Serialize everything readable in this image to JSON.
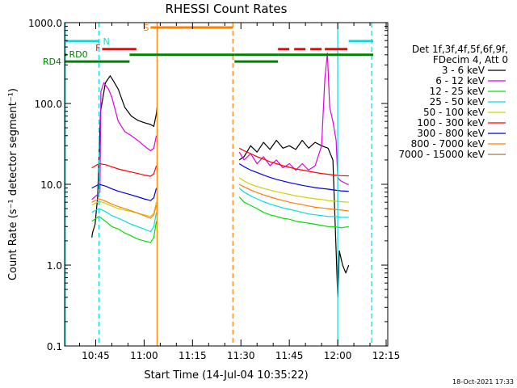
{
  "chart_data": {
    "type": "line",
    "title": "RHESSI Count Rates",
    "xlabel": "Start Time (14-Jul-04 10:35:22)",
    "ylabel": "Count Rate (s⁻¹ detector segment⁻¹)",
    "y_scale": "log",
    "ylim": [
      0.1,
      1000
    ],
    "xlim_min": [
      35.37,
      135.5
    ],
    "x_ticks": [
      {
        "m": 45,
        "label": "10:45"
      },
      {
        "m": 60,
        "label": "11:00"
      },
      {
        "m": 75,
        "label": "11:15"
      },
      {
        "m": 90,
        "label": "11:30"
      },
      {
        "m": 105,
        "label": "11:45"
      },
      {
        "m": 120,
        "label": "12:00"
      },
      {
        "m": 135,
        "label": "12:15"
      }
    ],
    "y_ticks": [
      {
        "v": 1000,
        "label": "1000.0"
      },
      {
        "v": 100,
        "label": "100.0"
      },
      {
        "v": 10,
        "label": "10.0"
      },
      {
        "v": 1,
        "label": "1.0"
      },
      {
        "v": 0.1,
        "label": "0.1"
      }
    ],
    "legend_header": [
      "Det 1f,3f,4f,5f,6f,9f,",
      "FDecim 4, Att 0"
    ],
    "data_gaps_min": [
      [
        64.0,
        89.5
      ]
    ],
    "series": [
      {
        "name": "3 - 6 keV",
        "color": "#000000",
        "pts": [
          [
            43.8,
            2.2
          ],
          [
            44,
            2.5
          ],
          [
            44.8,
            3.2
          ],
          [
            45.6,
            7
          ],
          [
            46.5,
            80
          ],
          [
            48,
            180
          ],
          [
            49.5,
            220
          ],
          [
            50.5,
            190
          ],
          [
            52,
            150
          ],
          [
            54,
            90
          ],
          [
            56,
            70
          ],
          [
            58,
            62
          ],
          [
            60,
            58
          ],
          [
            62,
            55
          ],
          [
            63,
            52
          ],
          [
            63.8,
            75
          ],
          [
            64,
            90
          ],
          [
            89.5,
            20
          ],
          [
            91,
            22
          ],
          [
            93,
            30
          ],
          [
            95,
            25
          ],
          [
            97,
            33
          ],
          [
            99,
            27
          ],
          [
            101,
            35
          ],
          [
            103,
            28
          ],
          [
            105,
            30
          ],
          [
            107,
            27
          ],
          [
            109,
            35
          ],
          [
            111,
            28
          ],
          [
            113,
            33
          ],
          [
            115,
            30
          ],
          [
            117,
            28
          ],
          [
            118.5,
            20
          ],
          [
            119.5,
            1.5
          ],
          [
            120,
            0.4
          ],
          [
            120.5,
            1.5
          ],
          [
            121.5,
            1.0
          ],
          [
            122.5,
            0.8
          ],
          [
            123.4,
            1.0
          ]
        ]
      },
      {
        "name": "6 - 12 keV",
        "color": "#e000e0",
        "pts": [
          [
            43.8,
            6.5
          ],
          [
            45.6,
            7.5
          ],
          [
            46.3,
            8
          ],
          [
            46.6,
            140
          ],
          [
            47.5,
            180
          ],
          [
            49,
            150
          ],
          [
            50,
            120
          ],
          [
            52,
            60
          ],
          [
            54,
            45
          ],
          [
            56,
            40
          ],
          [
            58,
            35
          ],
          [
            60,
            30
          ],
          [
            62,
            26
          ],
          [
            63,
            28
          ],
          [
            63.8,
            40
          ],
          [
            89.5,
            25
          ],
          [
            91,
            20
          ],
          [
            93,
            24
          ],
          [
            95,
            18
          ],
          [
            97,
            22
          ],
          [
            99,
            17
          ],
          [
            101,
            20
          ],
          [
            103,
            16
          ],
          [
            105,
            18
          ],
          [
            107,
            15
          ],
          [
            109,
            18
          ],
          [
            111,
            15
          ],
          [
            113,
            17
          ],
          [
            115,
            30
          ],
          [
            116,
            200
          ],
          [
            116.8,
            420
          ],
          [
            117.5,
            90
          ],
          [
            118.5,
            60
          ],
          [
            119.5,
            35
          ],
          [
            120,
            12
          ],
          [
            121,
            11
          ],
          [
            123,
            10
          ],
          [
            123.4,
            10
          ]
        ]
      },
      {
        "name": "12 - 25 keV",
        "color": "#00e000",
        "pts": [
          [
            43.8,
            3.5
          ],
          [
            46,
            4
          ],
          [
            48,
            3.5
          ],
          [
            50,
            3.0
          ],
          [
            52,
            2.8
          ],
          [
            54,
            2.5
          ],
          [
            56,
            2.3
          ],
          [
            58,
            2.1
          ],
          [
            60,
            2.0
          ],
          [
            62,
            1.9
          ],
          [
            63,
            2.2
          ],
          [
            63.8,
            3.5
          ],
          [
            89.5,
            7
          ],
          [
            91,
            6
          ],
          [
            93,
            5.5
          ],
          [
            95,
            5
          ],
          [
            97,
            4.5
          ],
          [
            99,
            4.2
          ],
          [
            101,
            4
          ],
          [
            103,
            3.8
          ],
          [
            105,
            3.7
          ],
          [
            107,
            3.5
          ],
          [
            109,
            3.4
          ],
          [
            111,
            3.3
          ],
          [
            113,
            3.2
          ],
          [
            115,
            3.1
          ],
          [
            117,
            3.0
          ],
          [
            119,
            3.0
          ],
          [
            121,
            2.9
          ],
          [
            123.4,
            3.0
          ]
        ]
      },
      {
        "name": "25 - 50 keV",
        "color": "#00e0e0",
        "pts": [
          [
            43.8,
            4.5
          ],
          [
            46,
            5.0
          ],
          [
            48,
            4.6
          ],
          [
            50,
            4.1
          ],
          [
            52,
            3.8
          ],
          [
            54,
            3.5
          ],
          [
            56,
            3.2
          ],
          [
            58,
            3.0
          ],
          [
            60,
            2.8
          ],
          [
            62,
            2.6
          ],
          [
            63,
            3.0
          ],
          [
            63.8,
            4.5
          ],
          [
            89.5,
            9
          ],
          [
            91,
            8
          ],
          [
            93,
            7.2
          ],
          [
            95,
            6.6
          ],
          [
            97,
            6.1
          ],
          [
            99,
            5.7
          ],
          [
            101,
            5.4
          ],
          [
            103,
            5.1
          ],
          [
            105,
            4.9
          ],
          [
            107,
            4.7
          ],
          [
            109,
            4.5
          ],
          [
            111,
            4.3
          ],
          [
            113,
            4.2
          ],
          [
            115,
            4.1
          ],
          [
            117,
            4.0
          ],
          [
            119,
            4.0
          ],
          [
            121,
            3.9
          ],
          [
            123.4,
            3.9
          ]
        ]
      },
      {
        "name": "50 - 100 keV",
        "color": "#d0d000",
        "pts": [
          [
            43.8,
            5.5
          ],
          [
            46,
            6.2
          ],
          [
            48,
            5.8
          ],
          [
            50,
            5.4
          ],
          [
            52,
            5.0
          ],
          [
            54,
            4.8
          ],
          [
            56,
            4.6
          ],
          [
            58,
            4.4
          ],
          [
            60,
            4.2
          ],
          [
            62,
            4.0
          ],
          [
            63,
            4.4
          ],
          [
            63.8,
            6.0
          ],
          [
            89.5,
            12
          ],
          [
            91,
            11
          ],
          [
            93,
            10
          ],
          [
            95,
            9.4
          ],
          [
            97,
            8.9
          ],
          [
            99,
            8.5
          ],
          [
            101,
            8.1
          ],
          [
            103,
            7.8
          ],
          [
            105,
            7.5
          ],
          [
            107,
            7.2
          ],
          [
            109,
            7.0
          ],
          [
            111,
            6.8
          ],
          [
            113,
            6.6
          ],
          [
            115,
            6.5
          ],
          [
            117,
            6.3
          ],
          [
            119,
            6.2
          ],
          [
            121,
            6.1
          ],
          [
            123.4,
            6.0
          ]
        ]
      },
      {
        "name": "100 - 300 keV",
        "color": "#ff0000",
        "pts": [
          [
            43.8,
            16
          ],
          [
            46,
            18
          ],
          [
            48,
            17.5
          ],
          [
            50,
            16.5
          ],
          [
            52,
            15.5
          ],
          [
            54,
            14.8
          ],
          [
            56,
            14.2
          ],
          [
            58,
            13.6
          ],
          [
            60,
            13.0
          ],
          [
            62,
            12.6
          ],
          [
            63,
            13.5
          ],
          [
            63.8,
            17
          ],
          [
            89.5,
            28
          ],
          [
            91,
            26
          ],
          [
            93,
            24
          ],
          [
            95,
            22
          ],
          [
            97,
            20.5
          ],
          [
            99,
            19
          ],
          [
            101,
            18
          ],
          [
            103,
            17
          ],
          [
            105,
            16.2
          ],
          [
            107,
            15.5
          ],
          [
            109,
            15
          ],
          [
            111,
            14.5
          ],
          [
            113,
            14
          ],
          [
            115,
            13.6
          ],
          [
            117,
            13.3
          ],
          [
            119,
            13
          ],
          [
            121,
            12.8
          ],
          [
            123.4,
            12.7
          ]
        ]
      },
      {
        "name": "300 - 800 keV",
        "color": "#0000e0",
        "pts": [
          [
            43.8,
            9
          ],
          [
            46,
            10
          ],
          [
            48,
            9.5
          ],
          [
            50,
            8.8
          ],
          [
            52,
            8.2
          ],
          [
            54,
            7.8
          ],
          [
            56,
            7.4
          ],
          [
            58,
            7.0
          ],
          [
            60,
            6.6
          ],
          [
            62,
            6.3
          ],
          [
            63,
            6.8
          ],
          [
            63.8,
            9
          ],
          [
            89.5,
            18
          ],
          [
            91,
            16.5
          ],
          [
            93,
            15
          ],
          [
            95,
            14
          ],
          [
            97,
            13
          ],
          [
            99,
            12.2
          ],
          [
            101,
            11.5
          ],
          [
            103,
            11
          ],
          [
            105,
            10.5
          ],
          [
            107,
            10.1
          ],
          [
            109,
            9.7
          ],
          [
            111,
            9.4
          ],
          [
            113,
            9.1
          ],
          [
            115,
            8.9
          ],
          [
            117,
            8.7
          ],
          [
            119,
            8.5
          ],
          [
            121,
            8.3
          ],
          [
            123.4,
            8.2
          ]
        ]
      },
      {
        "name": "800 - 7000 keV",
        "color": "#ff8000",
        "pts": [
          [
            43.8,
            6
          ],
          [
            46,
            6.6
          ],
          [
            48,
            6.2
          ],
          [
            50,
            5.7
          ],
          [
            52,
            5.3
          ],
          [
            54,
            5.0
          ],
          [
            56,
            4.7
          ],
          [
            58,
            4.4
          ],
          [
            60,
            4.1
          ],
          [
            62,
            3.8
          ],
          [
            63,
            4.2
          ],
          [
            63.8,
            5.5
          ],
          [
            89.5,
            10
          ],
          [
            91,
            9.3
          ],
          [
            93,
            8.5
          ],
          [
            95,
            7.9
          ],
          [
            97,
            7.4
          ],
          [
            99,
            7.0
          ],
          [
            101,
            6.6
          ],
          [
            103,
            6.3
          ],
          [
            105,
            6.0
          ],
          [
            107,
            5.8
          ],
          [
            109,
            5.6
          ],
          [
            111,
            5.4
          ],
          [
            113,
            5.2
          ],
          [
            115,
            5.1
          ],
          [
            117,
            5.0
          ],
          [
            119,
            4.9
          ],
          [
            121,
            4.8
          ],
          [
            123.4,
            4.7
          ]
        ]
      },
      {
        "name": "7000 - 15000 keV",
        "color": "#a07850",
        "pts": []
      }
    ],
    "markers": [
      {
        "label": "N",
        "color": "#00e0e0",
        "segments": [
          [
            35.4,
            46.0
          ]
        ],
        "y_value": 590
      },
      {
        "label": "F",
        "color": "#ff0000",
        "segments": [
          [
            47.0,
            57.6
          ]
        ],
        "y_value": 470
      },
      {
        "label": "S",
        "color": "#ff8000",
        "segments": [
          [
            62.0,
            87.5
          ]
        ],
        "y_value": 870
      },
      {
        "label": "RD0",
        "color": "#008000",
        "segments": [
          [
            35.4,
            36.0
          ]
        ],
        "y_value": 400
      },
      {
        "label": "RD4",
        "color": "#008000",
        "segments": [
          [
            35.4,
            55.5
          ]
        ],
        "y_value": 330
      },
      {
        "label": "",
        "color": "#008000",
        "segments": [
          [
            55.5,
            88.0
          ],
          [
            88.0,
            101.5
          ],
          [
            101.5,
            131.0
          ]
        ],
        "y_value": 400
      },
      {
        "label": "",
        "color": "#008000",
        "segments": [
          [
            88.0,
            101.5
          ]
        ],
        "y_value": 330
      },
      {
        "label": "",
        "color": "#ff0000",
        "segments": [
          [
            101.5,
            105.0
          ],
          [
            106.5,
            110.0
          ],
          [
            111.5,
            115.0
          ],
          [
            116.0,
            123.0
          ]
        ],
        "y_value": 470
      },
      {
        "label": "",
        "color": "#00e0e0",
        "segments": [
          [
            123.4,
            131.0
          ]
        ],
        "y_value": 590
      }
    ],
    "vlines": [
      {
        "m": 35.6,
        "color": "#00e0e0",
        "style": "solid"
      },
      {
        "m": 46.0,
        "color": "#00e0e0",
        "style": "dashed"
      },
      {
        "m": 64.0,
        "color": "#ff8000",
        "style": "solid"
      },
      {
        "m": 87.5,
        "color": "#ff8000",
        "style": "dashed"
      },
      {
        "m": 120.0,
        "color": "#00e0e0",
        "style": "solid"
      },
      {
        "m": 130.5,
        "color": "#00e0e0",
        "style": "dashed"
      }
    ],
    "timestamp": "18-Oct-2021 17:33"
  }
}
